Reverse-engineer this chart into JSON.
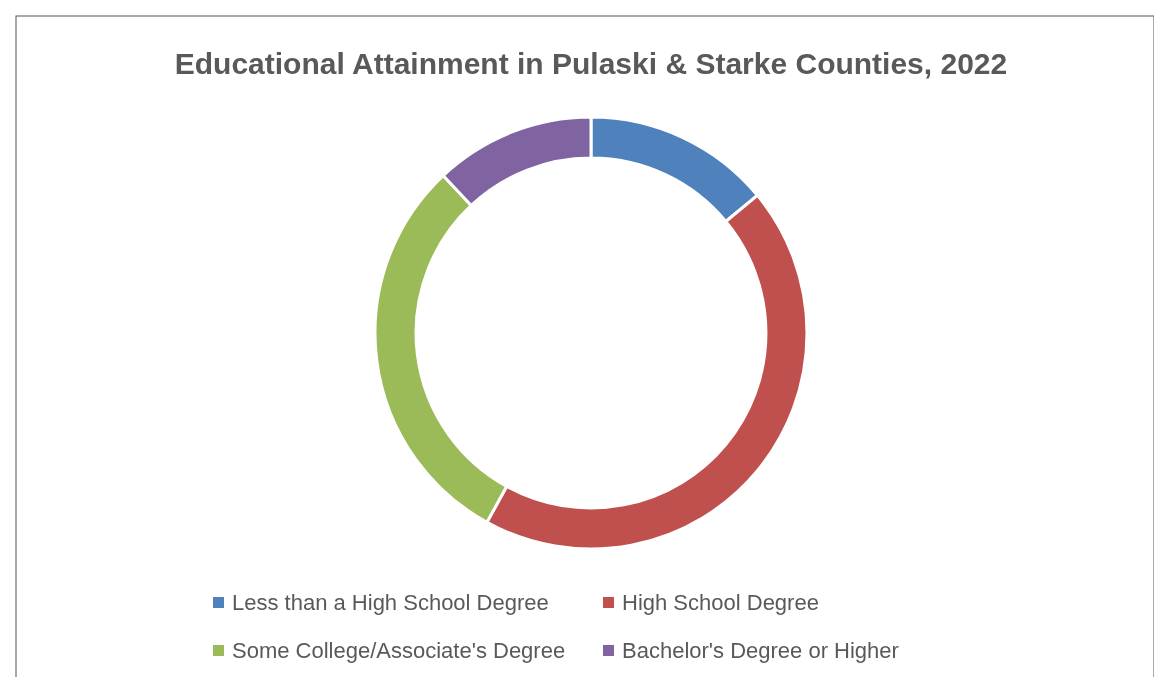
{
  "chart_data": {
    "type": "donut",
    "title": "Educational Attainment in Pulaski & Starke Counties, 2022",
    "categories": [
      "Less than a High School Degree",
      "High School Degree",
      "Some College/Associate's Degree",
      "Bachelor's Degree or Higher"
    ],
    "values": [
      14,
      44,
      30,
      12
    ],
    "colors": [
      "#4f81bd",
      "#c0504d",
      "#9bbb59",
      "#8064a2"
    ],
    "legend": "bottom"
  }
}
